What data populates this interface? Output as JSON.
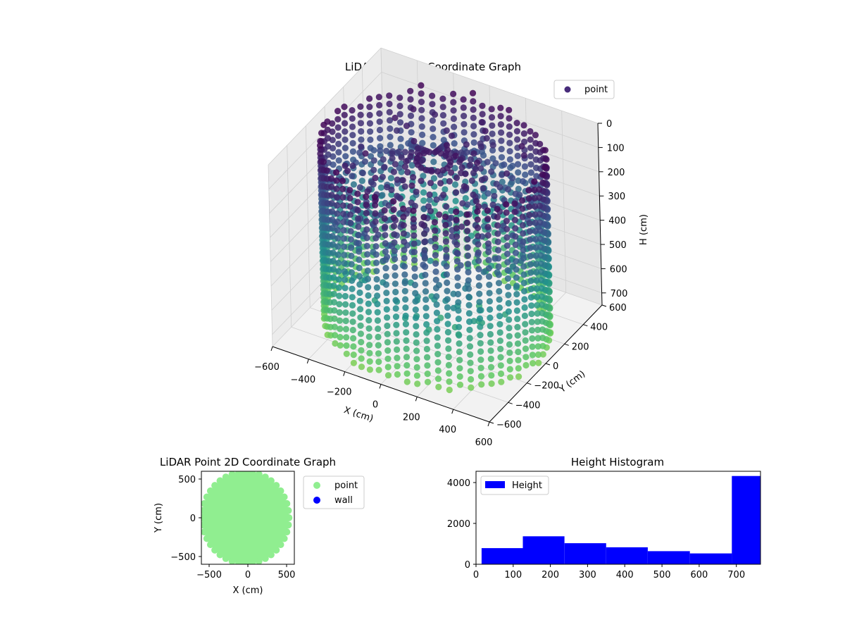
{
  "chart_data": [
    {
      "type": "scatter",
      "title": "LiDAR Point 3D Coordinate Graph",
      "xlabel": "X (cm)",
      "ylabel": "Y (cm)",
      "zlabel": "H (cm)",
      "xlim": [
        -600,
        600
      ],
      "ylim": [
        -600,
        600
      ],
      "zlim": [
        750,
        0
      ],
      "x_ticks": [
        "−600",
        "−400",
        "−200",
        "0",
        "200",
        "400",
        "600"
      ],
      "y_ticks": [
        "−600",
        "−400",
        "−200",
        "0",
        "200",
        "400",
        "600"
      ],
      "z_ticks": [
        "0",
        "100",
        "200",
        "300",
        "400",
        "500",
        "600",
        "700"
      ],
      "legend": {
        "position": "top-right",
        "entries": [
          {
            "name": "point",
            "color": "#472c7a"
          }
        ]
      },
      "colormap": "viridis",
      "grid": true,
      "wall_radius": 560,
      "max_height": 760
    },
    {
      "type": "scatter",
      "title": "LiDAR Point 2D Coordinate Graph",
      "xlabel": "X (cm)",
      "ylabel": "Y (cm)",
      "xlim": [
        -600,
        600
      ],
      "ylim": [
        -600,
        600
      ],
      "x_ticks": [
        "−500",
        "0",
        "500"
      ],
      "y_ticks": [
        "500",
        "0",
        "−500"
      ],
      "series": [
        {
          "name": "point",
          "color": "#90ee90"
        },
        {
          "name": "wall",
          "color": "#0000ff"
        }
      ],
      "legend": {
        "position": "outside-right"
      }
    },
    {
      "type": "bar",
      "title": "Height Histogram",
      "xlim": [
        0,
        765
      ],
      "ylim": [
        0,
        4550
      ],
      "x_ticks": [
        "0",
        "100",
        "200",
        "300",
        "400",
        "500",
        "600",
        "700"
      ],
      "y_ticks": [
        "0",
        "2000",
        "4000"
      ],
      "series": [
        {
          "name": "Height",
          "color": "#0000ff"
        }
      ],
      "bins": [
        {
          "start": 15,
          "end": 126,
          "count": 790
        },
        {
          "start": 126,
          "end": 238,
          "count": 1370
        },
        {
          "start": 238,
          "end": 350,
          "count": 1030
        },
        {
          "start": 350,
          "end": 462,
          "count": 830
        },
        {
          "start": 462,
          "end": 575,
          "count": 640
        },
        {
          "start": 575,
          "end": 688,
          "count": 530
        },
        {
          "start": 688,
          "end": 765,
          "count": 4320
        }
      ],
      "legend": {
        "position": "top-left"
      }
    }
  ]
}
